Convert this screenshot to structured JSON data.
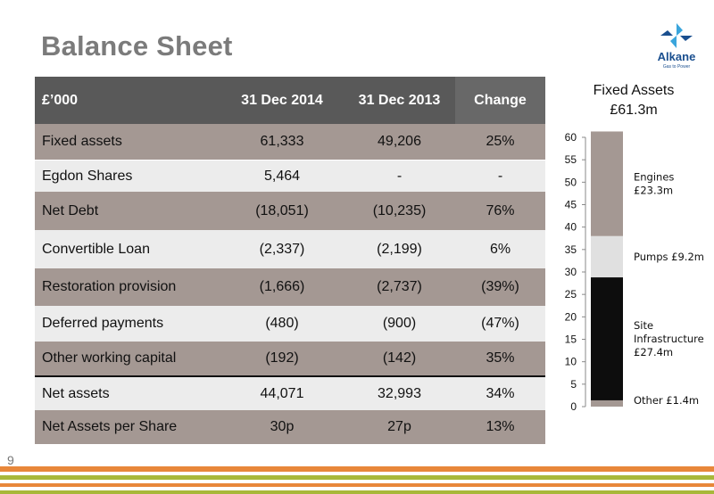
{
  "slide": {
    "title": "Balance Sheet",
    "page_number": "9"
  },
  "logo": {
    "name": "Alkane",
    "tagline": "Gas to Power"
  },
  "table": {
    "headers": [
      "£’000",
      "31 Dec 2014",
      "31 Dec 2013",
      "Change"
    ],
    "rows": [
      [
        "Fixed assets",
        "61,333",
        "49,206",
        "25%"
      ],
      [
        "Egdon Shares",
        "5,464",
        "-",
        "-"
      ],
      [
        "Net Debt",
        "(18,051)",
        "(10,235)",
        "76%"
      ],
      [
        "Convertible Loan",
        "(2,337)",
        "(2,199)",
        "6%"
      ],
      [
        "Restoration provision",
        "(1,666)",
        "(2,737)",
        "(39%)"
      ],
      [
        "Deferred payments",
        "(480)",
        "(900)",
        "(47%)"
      ],
      [
        "Other working capital",
        "(192)",
        "(142)",
        "35%"
      ],
      [
        "Net assets",
        "44,071",
        "32,993",
        "34%"
      ],
      [
        "Net Assets per Share",
        "30p",
        "27p",
        "13%"
      ]
    ]
  },
  "colors": {
    "header_bg": "#595959",
    "row_dark": "#a49893",
    "row_light": "#ececec",
    "stripe_orange": "#e8873a",
    "stripe_green": "#a8b83a",
    "logo_blue": "#1a4f8f",
    "logo_cyan": "#3aa5dc"
  },
  "chart_data": {
    "type": "bar",
    "stacked": true,
    "title": [
      "Fixed Assets",
      "£61.3m"
    ],
    "ylim": [
      0,
      60
    ],
    "yticks": [
      0,
      5,
      10,
      15,
      20,
      25,
      30,
      35,
      40,
      45,
      50,
      55,
      60
    ],
    "series": [
      {
        "label": [
          "Other £1.4m"
        ],
        "value": 1.4,
        "color": "#a49893"
      },
      {
        "label": [
          "Site",
          "Infrastructure",
          "£27.4m"
        ],
        "value": 27.4,
        "color": "#0d0d0d"
      },
      {
        "label": [
          "Pumps £9.2m"
        ],
        "value": 9.2,
        "color": "#e0e0e0"
      },
      {
        "label": [
          "Engines",
          "£23.3m"
        ],
        "value": 23.3,
        "color": "#a49893"
      }
    ]
  }
}
